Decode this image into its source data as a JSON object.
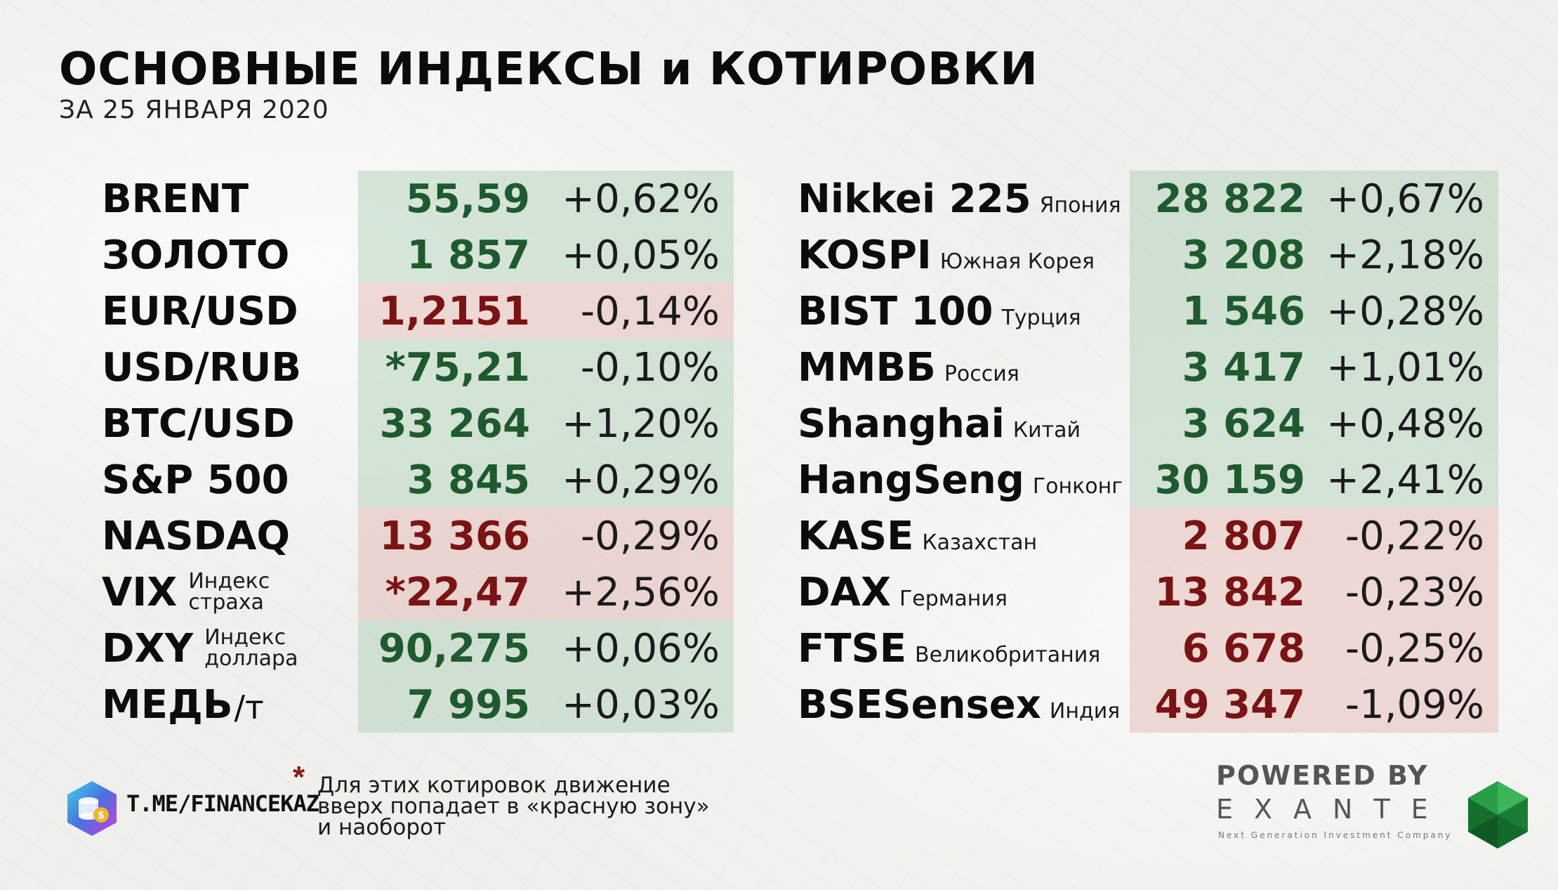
{
  "header": {
    "title": "ОСНОВНЫЕ ИНДЕКСЫ и КОТИРОВКИ",
    "subtitle": "ЗА 25 ЯНВАРЯ 2020"
  },
  "left_rows": [
    {
      "name": "BRENT",
      "value": "55,59",
      "change": "+0,62%",
      "zone": "up"
    },
    {
      "name": "ЗОЛОТО",
      "value": "1 857",
      "change": "+0,05%",
      "zone": "up"
    },
    {
      "name": "EUR/USD",
      "value": "1,2151",
      "change": "-0,14%",
      "zone": "down"
    },
    {
      "name": "USD/RUB",
      "value": "*75,21",
      "change": "-0,10%",
      "zone": "up"
    },
    {
      "name": "BTC/USD",
      "value": "33 264",
      "change": "+1,20%",
      "zone": "up"
    },
    {
      "name": "S&P 500",
      "value": "3 845",
      "change": "+0,29%",
      "zone": "up"
    },
    {
      "name": "NASDAQ",
      "value": "13 366",
      "change": "-0,29%",
      "zone": "down"
    },
    {
      "name": "VIX",
      "sub1": "Индекс",
      "sub2": "страха",
      "value": "*22,47",
      "change": "+2,56%",
      "zone": "down"
    },
    {
      "name": "DXY",
      "sub1": "Индекс",
      "sub2": "доллара",
      "value": "90,275",
      "change": "+0,06%",
      "zone": "up"
    },
    {
      "name": "МЕДЬ",
      "unit": "/т",
      "value": "7 995",
      "change": "+0,03%",
      "zone": "up"
    }
  ],
  "right_rows": [
    {
      "name": "Nikkei 225",
      "country": "Япония",
      "value": "28 822",
      "change": "+0,67%",
      "zone": "up"
    },
    {
      "name": "KOSPI",
      "country": "Южная Корея",
      "value": "3 208",
      "change": "+2,18%",
      "zone": "up"
    },
    {
      "name": "BIST 100",
      "country": "Турция",
      "value": "1 546",
      "change": "+0,28%",
      "zone": "up"
    },
    {
      "name": "ММВБ",
      "country": "Россия",
      "value": "3 417",
      "change": "+1,01%",
      "zone": "up"
    },
    {
      "name": "Shanghai",
      "country": "Китай",
      "value": "3 624",
      "change": "+0,48%",
      "zone": "up"
    },
    {
      "name": "HangSeng",
      "country": "Гонконг",
      "value": "30 159",
      "change": "+2,41%",
      "zone": "up"
    },
    {
      "name": "KASE",
      "country": "Казахстан",
      "value": "2 807",
      "change": "-0,22%",
      "zone": "down"
    },
    {
      "name": "DAX",
      "country": "Германия",
      "value": "13 842",
      "change": "-0,23%",
      "zone": "down"
    },
    {
      "name": "FTSE",
      "country": "Великобритания",
      "value": "6 678",
      "change": "-0,25%",
      "zone": "down"
    },
    {
      "name": "BSESensex",
      "country": "Индия",
      "value": "49 347",
      "change": "-1,09%",
      "zone": "down"
    }
  ],
  "footer": {
    "telegram": "T.ME/FINANCEKAZ",
    "star": "*",
    "note_lines": [
      "Для этих котировок движение",
      "вверх попадает в «красную зону»",
      "и наоборот"
    ],
    "powered_by": "POWERED BY",
    "brand": "EXANTE",
    "tagline": "Next Generation Investment Company"
  },
  "colors": {
    "up_zone": "#a8ceb4",
    "down_zone": "#e2b2ac",
    "up_value": "#1f5a2e",
    "down_value": "#7a1414"
  },
  "icons": [
    "telegram-logo-icon",
    "exante-gem-logo-icon"
  ]
}
